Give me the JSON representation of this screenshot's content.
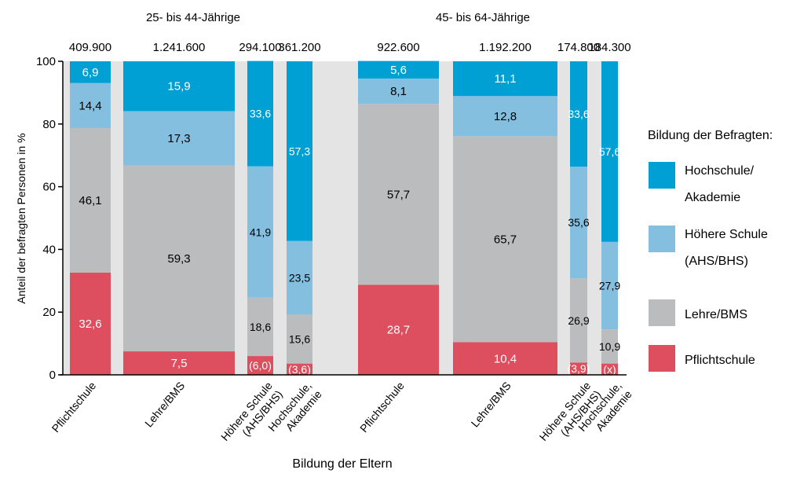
{
  "chart_data": {
    "type": "bar",
    "stacked": true,
    "variable_width": true,
    "ylabel": "Anteil der befragten Personen in %",
    "xlabel": "Bildung der Eltern",
    "ylim": [
      0,
      100
    ],
    "yticks": [
      "0",
      "20",
      "40",
      "60",
      "80",
      "100"
    ],
    "groups": [
      {
        "title": "25- bis 44-Jährige",
        "bars": [
          {
            "label": [
              "Pflichtschule"
            ],
            "total": "409.900",
            "values": [
              32.6,
              46.1,
              14.4,
              6.9
            ],
            "labels": [
              "32,6",
              "46,1",
              "14,4",
              "6,9"
            ]
          },
          {
            "label": [
              "Lehre/BMS"
            ],
            "total": "1.241.600",
            "values": [
              7.5,
              59.3,
              17.3,
              15.9
            ],
            "labels": [
              "7,5",
              "59,3",
              "17,3",
              "15,9"
            ]
          },
          {
            "label": [
              "Höhere Schule",
              "(AHS/BHS)"
            ],
            "total": "294.100",
            "values": [
              6.0,
              18.6,
              41.9,
              33.6
            ],
            "labels": [
              "(6,0)",
              "18,6",
              "41,9",
              "33,6"
            ]
          },
          {
            "label": [
              "Hochschule,",
              "Akademie"
            ],
            "total": "361.200",
            "values": [
              3.6,
              15.6,
              23.5,
              57.3
            ],
            "labels": [
              "(3,6)",
              "15,6",
              "23,5",
              "57,3"
            ]
          }
        ]
      },
      {
        "title": "45- bis 64-Jährige",
        "bars": [
          {
            "label": [
              "Pflichtschule"
            ],
            "total": "922.600",
            "values": [
              28.7,
              57.7,
              8.1,
              5.6
            ],
            "labels": [
              "28,7",
              "57,7",
              "8,1",
              "5,6"
            ]
          },
          {
            "label": [
              "Lehre/BMS"
            ],
            "total": "1.192.200",
            "values": [
              10.4,
              65.7,
              12.8,
              11.1
            ],
            "labels": [
              "10,4",
              "65,7",
              "12,8",
              "11,1"
            ]
          },
          {
            "label": [
              "Höhere Schule",
              "(AHS/BHS)"
            ],
            "total": "174.800",
            "values": [
              3.9,
              26.9,
              35.6,
              33.6
            ],
            "labels": [
              "(3,9)",
              "26,9",
              "35,6",
              "33,6"
            ]
          },
          {
            "label": [
              "Hochschule,",
              "Akademie"
            ],
            "total": "184.300",
            "values": [
              3.6,
              10.9,
              27.9,
              57.6
            ],
            "labels": [
              "(x)",
              "10,9",
              "27,9",
              "57,6"
            ]
          }
        ]
      }
    ],
    "legend": {
      "title": "Bildung der Befragten:",
      "placement": "right",
      "items": [
        {
          "label": [
            "Hochschule/",
            "Akademie"
          ],
          "color": "#009fd4"
        },
        {
          "label": [
            "Höhere Schule",
            "(AHS/BHS)"
          ],
          "color": "#85bfe0"
        },
        {
          "label": [
            "Lehre/BMS"
          ],
          "color": "#bbbcbd"
        },
        {
          "label": [
            "Pflichtschule"
          ],
          "color": "#dd4e5e"
        }
      ]
    },
    "series_colors": [
      "#dd4e5e",
      "#bbbcbd",
      "#85bfe0",
      "#009fd4"
    ],
    "band_color": "#e4e4e4"
  }
}
